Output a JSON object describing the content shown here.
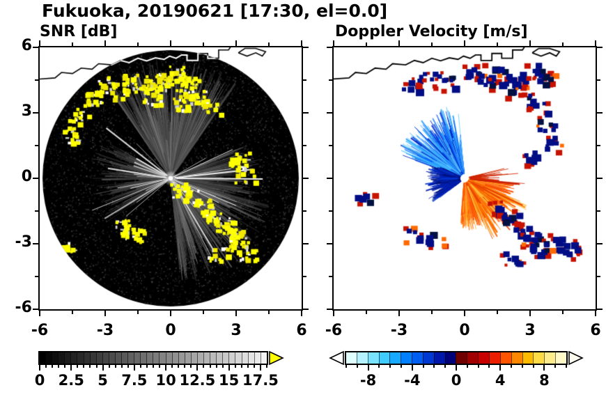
{
  "figure": {
    "title": "Fukuoka, 20190621 [17:30, el=0.0]",
    "background": "#ffffff"
  },
  "coastline": {
    "points": [
      [
        -6,
        4.55
      ],
      [
        -5.3,
        4.6
      ],
      [
        -5.0,
        4.85
      ],
      [
        -4.5,
        4.8
      ],
      [
        -4.1,
        5.05
      ],
      [
        -3.6,
        5.0
      ],
      [
        -3.3,
        5.25
      ],
      [
        -2.7,
        5.2
      ],
      [
        -2.3,
        5.4
      ],
      [
        -1.9,
        5.3
      ],
      [
        -1.5,
        5.5
      ],
      [
        -1.1,
        5.38
      ],
      [
        -0.7,
        5.52
      ],
      [
        -0.3,
        5.45
      ],
      [
        -0.05,
        5.6
      ],
      [
        0.25,
        5.5
      ],
      [
        0.5,
        5.65
      ],
      [
        0.75,
        5.65
      ],
      [
        0.75,
        5.4
      ],
      [
        1.25,
        5.4
      ],
      [
        1.25,
        5.72
      ],
      [
        1.7,
        5.72
      ],
      [
        1.7,
        5.5
      ],
      [
        2.2,
        5.5
      ],
      [
        2.2,
        5.88
      ],
      [
        2.65,
        5.88
      ],
      [
        2.8,
        6.1
      ]
    ],
    "islet": [
      [
        3.1,
        5.75
      ],
      [
        3.5,
        5.6
      ],
      [
        3.9,
        5.75
      ],
      [
        4.2,
        5.6
      ],
      [
        4.35,
        5.8
      ],
      [
        3.9,
        5.95
      ],
      [
        3.4,
        5.95
      ],
      [
        3.1,
        5.75
      ]
    ]
  },
  "chart_data": [
    {
      "type": "heatmap",
      "subtype": "radar_ppi",
      "title": "SNR [dB]",
      "xlabel": "",
      "ylabel": "",
      "xlim": [
        -6,
        6
      ],
      "ylim": [
        -6,
        6
      ],
      "x_ticks": [
        -6,
        -3,
        0,
        3,
        6
      ],
      "y_ticks": [
        6,
        3,
        0,
        -3,
        -6
      ],
      "x_tick_labels": [
        "-6",
        "-3",
        "0",
        "3",
        "6"
      ],
      "y_tick_labels": [
        "6",
        "3",
        "0",
        "-3",
        "-6"
      ],
      "grid": false,
      "colorbar": {
        "range": [
          0,
          18
        ],
        "ticks": [
          0,
          2.5,
          5,
          7.5,
          10,
          12.5,
          15,
          17.5
        ],
        "labels": [
          "0",
          "2.5",
          "5",
          "7.5",
          "10",
          "12.5",
          "15",
          "17.5"
        ],
        "segments": 36,
        "start_color": "#000000",
        "end_color": "#f2f2f2",
        "over_arrow_color": "#ffff00"
      },
      "features": {
        "description": "Black circular radar scan disk with grayscale SNR streaks radiating from center; saturated echoes (>17.5 dB) shown yellow; coastline of Fukuoka bay drawn in white across the top of the disk.",
        "disk_radius": 5.87,
        "speckle_n": 4200,
        "gray_fans": [
          {
            "az0": 55,
            "az1": 125,
            "rmax": 5.0,
            "n": 750,
            "g0": 40,
            "g1": 125
          },
          {
            "az0": -85,
            "az1": -15,
            "rmax": 4.4,
            "n": 460,
            "g0": 45,
            "g1": 130
          },
          {
            "az0": 150,
            "az1": 215,
            "rmax": 3.2,
            "n": 260,
            "g0": 35,
            "g1": 100
          },
          {
            "az0": -15,
            "az1": 25,
            "rmax": 3.6,
            "n": 220,
            "g0": 40,
            "g1": 110
          }
        ],
        "bright_rays": {
          "n": 30,
          "len_min": 1.2,
          "len_max": 4.3
        },
        "echo_color": "#ffff00",
        "coastline_color": "#ffffff",
        "yellow_clusters": [
          [
            -4.3,
            2.9
          ],
          [
            -3.6,
            3.75
          ],
          [
            -3.0,
            4.3
          ],
          [
            -2.4,
            4.05
          ],
          [
            -1.8,
            4.5
          ],
          [
            -1.25,
            4.3
          ],
          [
            -0.7,
            4.6
          ],
          [
            -0.2,
            4.45
          ],
          [
            0.25,
            4.8
          ],
          [
            0.8,
            4.3
          ],
          [
            1.3,
            3.8
          ],
          [
            1.8,
            3.25
          ],
          [
            0.55,
            3.5
          ],
          [
            -0.9,
            3.7
          ],
          [
            -4.6,
            2.0
          ],
          [
            3.1,
            0.85
          ],
          [
            3.35,
            0.2
          ],
          [
            0.45,
            -0.5
          ],
          [
            1.0,
            -0.85
          ],
          [
            1.5,
            -1.25
          ],
          [
            2.0,
            -1.7
          ],
          [
            2.45,
            -2.1
          ],
          [
            2.8,
            -2.55
          ],
          [
            3.1,
            -3.0
          ],
          [
            3.4,
            -3.35
          ],
          [
            -1.7,
            -2.55
          ],
          [
            -2.15,
            -2.2
          ],
          [
            -4.85,
            -3.2
          ],
          [
            2.1,
            -3.5
          ]
        ]
      }
    },
    {
      "type": "heatmap",
      "subtype": "radar_ppi",
      "title": "Doppler Velocity [m/s]",
      "xlabel": "",
      "ylabel": "",
      "xlim": [
        -6,
        6
      ],
      "ylim": [
        -6,
        6
      ],
      "x_ticks": [
        -6,
        -3,
        0,
        3,
        6
      ],
      "y_ticks": [
        6,
        3,
        0,
        -3,
        -6
      ],
      "x_tick_labels": [
        "-6",
        "-3",
        "0",
        "3",
        "6"
      ],
      "y_tick_labels": [
        "6",
        "3",
        "0",
        "-3",
        "-6"
      ],
      "grid": false,
      "colorbar": {
        "range": [
          -10,
          10
        ],
        "ticks": [
          -8,
          -4,
          0,
          4,
          8
        ],
        "labels": [
          "-8",
          "-4",
          "0",
          "4",
          "8"
        ],
        "colors": [
          "#e0ffff",
          "#b4f2ff",
          "#78e2ff",
          "#41ccff",
          "#18aaff",
          "#0080ff",
          "#005ef0",
          "#0038d2",
          "#0018aa",
          "#000078",
          "#700000",
          "#a00000",
          "#c80000",
          "#eb1e00",
          "#ff5500",
          "#ff8800",
          "#ffbb00",
          "#ffdc46",
          "#ffec8c",
          "#fff9c8"
        ],
        "under_arrow_color": "#ffffff",
        "over_arrow_color": "#fffdf0"
      },
      "features": {
        "description": "Doppler velocity fan: negative (blue, toward radar) velocities to the NW/W of the radar, positive (orange/red, away) velocities to the SE/E; scattered navy/red ground-clutter echoes; coastline drawn in black.",
        "fans": [
          {
            "az0": 95,
            "az1": 160,
            "rmax": 3.0,
            "n": 480,
            "palette": "blue_bright"
          },
          {
            "az0": 155,
            "az1": 218,
            "rmax": 1.5,
            "n": 320,
            "palette": "blue_dark"
          },
          {
            "az0": -95,
            "az1": -8,
            "rmax": 2.0,
            "n": 680,
            "palette": "orange"
          },
          {
            "az0": -72,
            "az1": -22,
            "rmax": 2.8,
            "n": 150,
            "palette": "orange_long"
          },
          {
            "az0": -8,
            "az1": 14,
            "rmax": 2.5,
            "n": 26,
            "palette": "red_thin"
          }
        ],
        "palettes": {
          "blue_bright": [
            "#2aa0ff",
            "#0a64ff",
            "#0040e6",
            "#34b4ff",
            "#0028c8",
            "#66ccff"
          ],
          "blue_dark": [
            "#0020b4",
            "#001488",
            "#0034d2",
            "#000f6e"
          ],
          "orange": [
            "#ff8c00",
            "#ff6400",
            "#ffa028",
            "#f04800",
            "#ff7832",
            "#ffb43c",
            "#ff5000"
          ],
          "orange_long": [
            "#ff5a00",
            "#e63c00",
            "#ff8200",
            "#ffc03c"
          ],
          "red_thin": [
            "#d42800",
            "#c81e00"
          ]
        },
        "blob_core_color": "#000d85",
        "blob_rim_color": "#c81200",
        "coastline_color": "#000000",
        "blob_clusters": [
          [
            -2.5,
            4.35
          ],
          [
            -1.8,
            4.6
          ],
          [
            -0.95,
            4.5
          ],
          [
            0.3,
            4.9
          ],
          [
            0.95,
            4.55
          ],
          [
            1.55,
            4.85
          ],
          [
            2.3,
            4.6
          ],
          [
            3.1,
            5.05
          ],
          [
            3.55,
            4.7
          ],
          [
            1.9,
            4.15
          ],
          [
            2.7,
            3.65
          ],
          [
            3.35,
            3.3
          ],
          [
            3.7,
            2.5
          ],
          [
            3.9,
            1.7
          ],
          [
            3.05,
            1.0
          ],
          [
            1.5,
            -1.35
          ],
          [
            2.0,
            -1.8
          ],
          [
            2.5,
            -2.25
          ],
          [
            2.95,
            -2.7
          ],
          [
            3.3,
            -3.15
          ],
          [
            4.25,
            -2.9
          ],
          [
            4.7,
            -3.2
          ],
          [
            -4.7,
            -0.95
          ],
          [
            -2.4,
            -2.5
          ],
          [
            -1.55,
            -2.7
          ],
          [
            2.15,
            -3.6
          ]
        ]
      }
    }
  ]
}
